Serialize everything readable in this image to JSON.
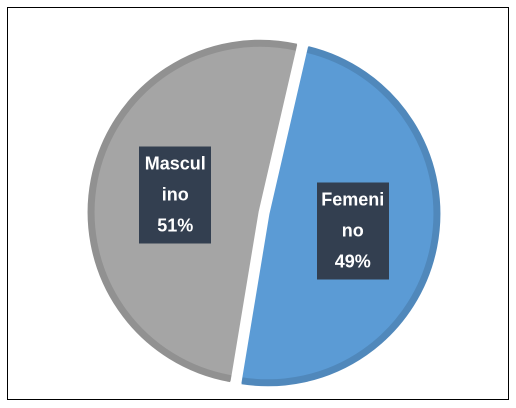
{
  "chart_data": {
    "type": "pie",
    "categories": [
      "Femenino",
      "Masculino"
    ],
    "values": [
      49,
      51
    ],
    "value_labels": [
      "49%",
      "51%"
    ],
    "colors": [
      "#5b9bd5",
      "#a5a5a5"
    ]
  }
}
